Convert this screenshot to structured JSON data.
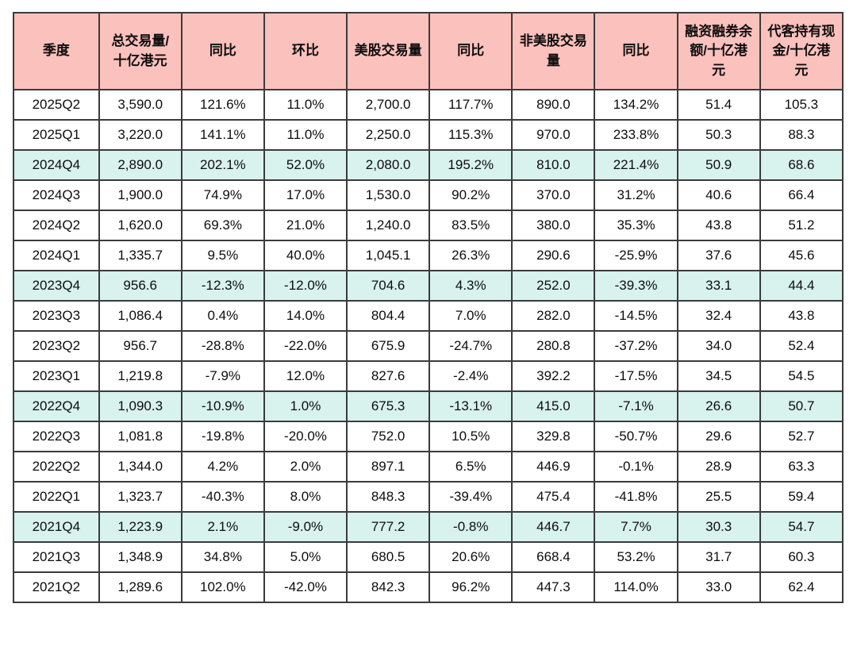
{
  "page": {
    "background_color": "#ffffff"
  },
  "colors": {
    "header_background": "#fbc1bd",
    "highlight_row_background": "#d8f2ee",
    "border": "#3b3b3b",
    "text": "#0d0d0d"
  },
  "chart_data": {
    "type": "table",
    "title": "",
    "columns": [
      "季度",
      "总交易量/十亿港元",
      "同比",
      "环比",
      "美股交易量",
      "同比",
      "非美股交易量",
      "同比",
      "融资融券余额/十亿港元",
      "代客持有现金/十亿港元"
    ],
    "rows": [
      [
        "2025Q2",
        "3,590.0",
        "121.6%",
        "11.0%",
        "2,700.0",
        "117.7%",
        "890.0",
        "134.2%",
        "51.4",
        "105.3"
      ],
      [
        "2025Q1",
        "3,220.0",
        "141.1%",
        "11.0%",
        "2,250.0",
        "115.3%",
        "970.0",
        "233.8%",
        "50.3",
        "88.3"
      ],
      [
        "2024Q4",
        "2,890.0",
        "202.1%",
        "52.0%",
        "2,080.0",
        "195.2%",
        "810.0",
        "221.4%",
        "50.9",
        "68.6"
      ],
      [
        "2024Q3",
        "1,900.0",
        "74.9%",
        "17.0%",
        "1,530.0",
        "90.2%",
        "370.0",
        "31.2%",
        "40.6",
        "66.4"
      ],
      [
        "2024Q2",
        "1,620.0",
        "69.3%",
        "21.0%",
        "1,240.0",
        "83.5%",
        "380.0",
        "35.3%",
        "43.8",
        "51.2"
      ],
      [
        "2024Q1",
        "1,335.7",
        "9.5%",
        "40.0%",
        "1,045.1",
        "26.3%",
        "290.6",
        "-25.9%",
        "37.6",
        "45.6"
      ],
      [
        "2023Q4",
        "956.6",
        "-12.3%",
        "-12.0%",
        "704.6",
        "4.3%",
        "252.0",
        "-39.3%",
        "33.1",
        "44.4"
      ],
      [
        "2023Q3",
        "1,086.4",
        "0.4%",
        "14.0%",
        "804.4",
        "7.0%",
        "282.0",
        "-14.5%",
        "32.4",
        "43.8"
      ],
      [
        "2023Q2",
        "956.7",
        "-28.8%",
        "-22.0%",
        "675.9",
        "-24.7%",
        "280.8",
        "-37.2%",
        "34.0",
        "52.4"
      ],
      [
        "2023Q1",
        "1,219.8",
        "-7.9%",
        "12.0%",
        "827.6",
        "-2.4%",
        "392.2",
        "-17.5%",
        "34.5",
        "54.5"
      ],
      [
        "2022Q4",
        "1,090.3",
        "-10.9%",
        "1.0%",
        "675.3",
        "-13.1%",
        "415.0",
        "-7.1%",
        "26.6",
        "50.7"
      ],
      [
        "2022Q3",
        "1,081.8",
        "-19.8%",
        "-20.0%",
        "752.0",
        "10.5%",
        "329.8",
        "-50.7%",
        "29.6",
        "52.7"
      ],
      [
        "2022Q2",
        "1,344.0",
        "4.2%",
        "2.0%",
        "897.1",
        "6.5%",
        "446.9",
        "-0.1%",
        "28.9",
        "63.3"
      ],
      [
        "2022Q1",
        "1,323.7",
        "-40.3%",
        "8.0%",
        "848.3",
        "-39.4%",
        "475.4",
        "-41.8%",
        "25.5",
        "59.4"
      ],
      [
        "2021Q4",
        "1,223.9",
        "2.1%",
        "-9.0%",
        "777.2",
        "-0.8%",
        "446.7",
        "7.7%",
        "30.3",
        "54.7"
      ],
      [
        "2021Q3",
        "1,348.9",
        "34.8%",
        "5.0%",
        "680.5",
        "20.6%",
        "668.4",
        "53.2%",
        "31.7",
        "60.3"
      ],
      [
        "2021Q2",
        "1,289.6",
        "102.0%",
        "-42.0%",
        "842.3",
        "96.2%",
        "447.3",
        "114.0%",
        "33.0",
        "62.4"
      ]
    ],
    "highlighted_rows": [
      "2024Q4",
      "2023Q4",
      "2022Q4",
      "2021Q4"
    ],
    "layout_hints": {
      "grid": "all-borders",
      "header_style": "pink-bold",
      "highlight_style": "mint-q4-rows"
    }
  }
}
